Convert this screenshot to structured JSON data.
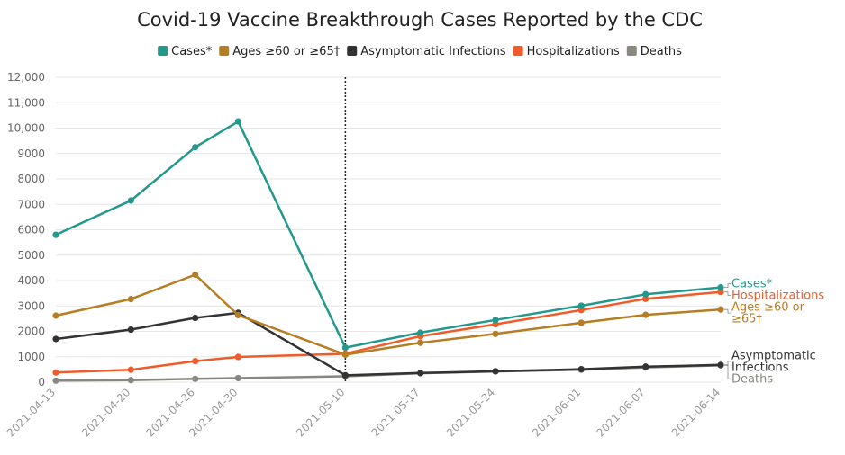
{
  "chart_data": {
    "type": "line",
    "title": "Covid-19 Vaccine Breakthrough Cases Reported by the CDC",
    "xlabel": "",
    "ylabel": "",
    "ylim": [
      0,
      12000
    ],
    "y_ticks": [
      "0",
      "1000",
      "2000",
      "3000",
      "4000",
      "5000",
      "6000",
      "7000",
      "8000",
      "9000",
      "10,000",
      "11,000",
      "12,000"
    ],
    "x": [
      "2021-04-13",
      "2021-04-20",
      "2021-04-26",
      "2021-04-30",
      "2021-05-10",
      "2021-05-17",
      "2021-05-24",
      "2021-06-01",
      "2021-06-07",
      "2021-06-14"
    ],
    "reference_line_date": "2021-05-10",
    "legend_position": "top-center",
    "grid": "horizontal",
    "series": [
      {
        "name": "Cases*",
        "color": "#23988c",
        "end_label": [
          "Cases*"
        ],
        "values": [
          5800,
          7150,
          9250,
          10260,
          1360,
          1950,
          2450,
          3010,
          3460,
          3730
        ]
      },
      {
        "name": "Ages ≥60 or ≥65†",
        "color": "#b57e23",
        "end_label": [
          "Ages ≥60 or",
          "≥65†"
        ],
        "values": [
          2620,
          3270,
          4230,
          2640,
          1080,
          1550,
          1900,
          2340,
          2650,
          2860
        ]
      },
      {
        "name": "Asymptomatic Infections",
        "color": "#333333",
        "end_label": [
          "Asymptomatic",
          "Infections"
        ],
        "values": [
          1700,
          2070,
          2530,
          2730,
          270,
          360,
          430,
          510,
          610,
          680
        ]
      },
      {
        "name": "Hospitalizations",
        "color": "#f05c29",
        "end_label": [
          "Hospitalizations"
        ],
        "values": [
          380,
          490,
          830,
          990,
          1120,
          1810,
          2280,
          2840,
          3280,
          3550
        ]
      },
      {
        "name": "Deaths",
        "color": "#888880",
        "end_label": [
          "Deaths"
        ],
        "values": [
          60,
          80,
          130,
          160,
          230,
          350,
          420,
          490,
          580,
          660
        ]
      }
    ]
  }
}
